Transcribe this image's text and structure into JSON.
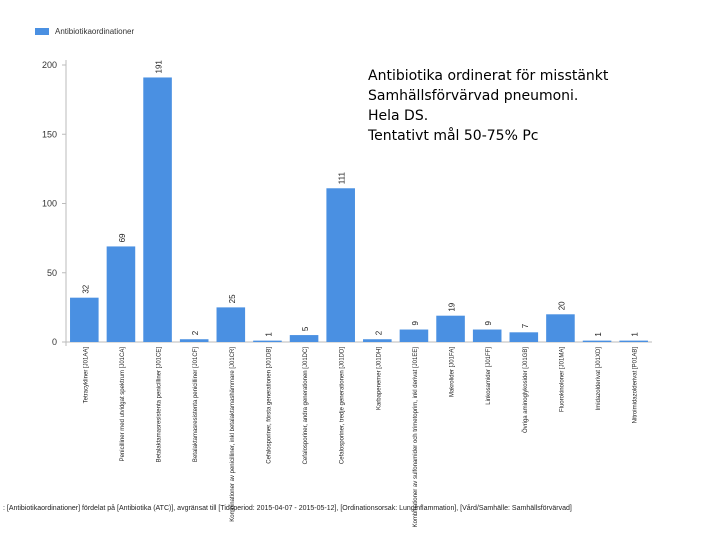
{
  "chart_data": {
    "type": "bar",
    "legend": {
      "label": "Antibiotikaordinationer",
      "color": "#4a90e2"
    },
    "categories": [
      "Tetracykliner [J01AA]",
      "Penicilliner med utvidgat spektrum [J01CA]",
      "Betalaktamasresistenta penicilliner [J01CE]",
      "Betalaktamasresistenta penicilliner [J01CF]",
      "Kombinationer av penicilliner, inkl betalaktamashämmare [J01CR]",
      "Cefalosporiner, första generationen [J01DB]",
      "Cefalosporiner, andra generationen [J01DC]",
      "Cefalosporiner, tredje generationen [J01DD]",
      "Karbapenemer [J01DH]",
      "Kombinationer av sulfonamider och trimetoprim, inkl derivat [J01EE]",
      "Makrolider [J01FA]",
      "Linkosamider [J01FF]",
      "Övriga aminoglykosider [J01GB]",
      "Fluorokinoloner [J01MA]",
      "Imidazolderivat [J01XD]",
      "Nitroimidazolderivat [P01AB]"
    ],
    "values": [
      32,
      69,
      191,
      2,
      25,
      1,
      5,
      111,
      2,
      9,
      19,
      9,
      7,
      20,
      1,
      1
    ],
    "data_labels": [
      "32",
      "69",
      "191",
      "2",
      "25",
      "1",
      "5",
      "111",
      "2",
      "9",
      "19",
      "9",
      "7",
      "20",
      "1",
      "1"
    ],
    "ylim": [
      0,
      200
    ],
    "yticks": [
      0,
      50,
      100,
      150,
      200
    ],
    "grid": false,
    "title": "",
    "xlabel": "",
    "ylabel": ""
  },
  "annotation": {
    "lines": [
      "Antibiotika ordinerat för misstänkt",
      "Samhällsförvärvad pneumoni.",
      "Hela DS.",
      "Tentativt mål 50-75% Pc"
    ]
  },
  "footer": ": [Antibiotikaordinationer] fördelat på [Antibiotika (ATC)], avgränsat till [Tidsperiod: 2015-04-07 - 2015-05-12], [Ordinationsorsak: Lunginflammation], [Vård/Samhälle: Samhällsförvärvad]"
}
